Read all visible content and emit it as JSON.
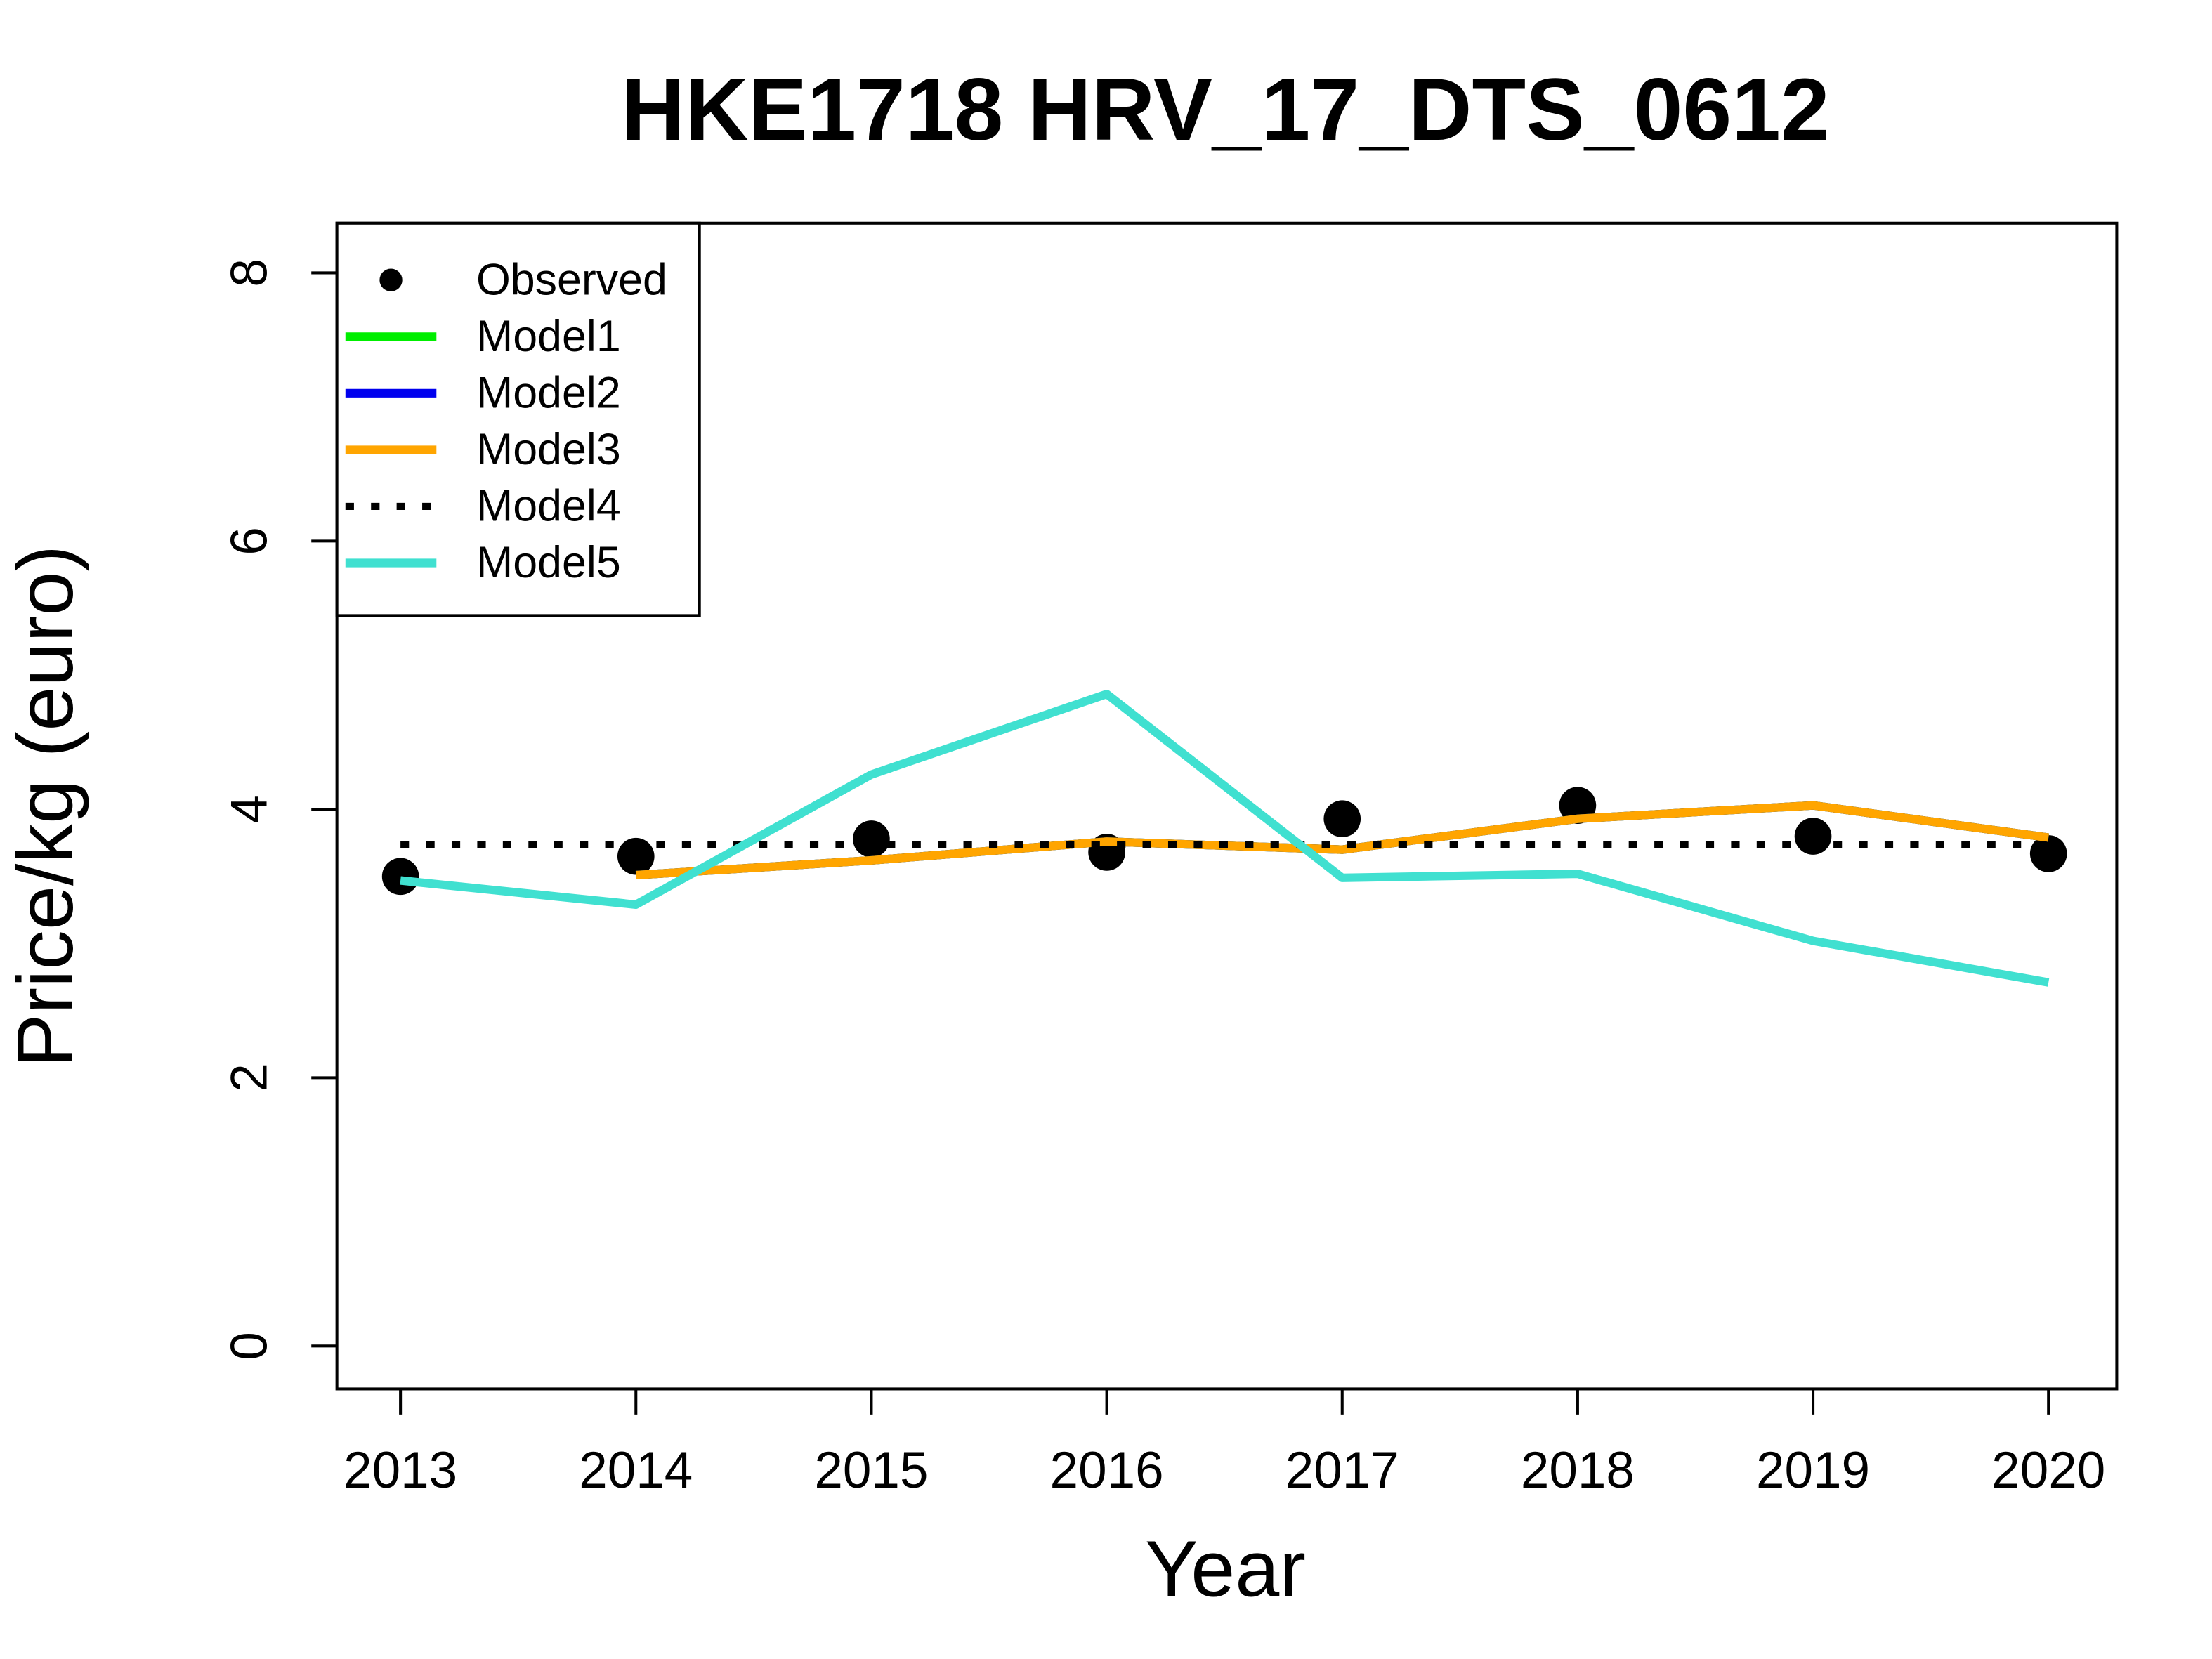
{
  "chart_data": {
    "type": "line",
    "title": "HKE1718 HRV_17_DTS_0612",
    "x_label": "Year",
    "y_label": "Price/kg (euro)",
    "x": [
      2013,
      2014,
      2015,
      2016,
      2017,
      2018,
      2019,
      2020
    ],
    "xlim": [
      2012.73,
      2020.29
    ],
    "xticks": [
      2013,
      2014,
      2015,
      2016,
      2017,
      2018,
      2019,
      2020
    ],
    "ylim": [
      -0.32,
      8.37
    ],
    "yticks": [
      0,
      2,
      4,
      6,
      8
    ],
    "legend": "top-left",
    "series": [
      {
        "name": "Observed",
        "color": "#000000",
        "style": "points",
        "values": [
          3.5,
          3.65,
          3.78,
          3.68,
          3.93,
          4.03,
          3.8,
          3.67
        ]
      },
      {
        "name": "Model1",
        "color": "#00ee00",
        "style": "solid",
        "values": [
          null,
          3.51,
          3.62,
          3.76,
          3.7,
          3.93,
          4.03,
          3.79
        ]
      },
      {
        "name": "Model2",
        "color": "#0000ee",
        "style": "solid",
        "values": [
          null,
          3.51,
          3.62,
          3.76,
          3.7,
          3.93,
          4.03,
          3.79
        ]
      },
      {
        "name": "Model3",
        "color": "#ffa500",
        "style": "solid",
        "values": [
          null,
          3.51,
          3.62,
          3.76,
          3.7,
          3.93,
          4.03,
          3.79
        ]
      },
      {
        "name": "Model4",
        "color": "#000000",
        "style": "dotted",
        "values": [
          3.74,
          3.74,
          3.74,
          3.74,
          3.74,
          3.74,
          3.74,
          3.74
        ]
      },
      {
        "name": "Model5",
        "color": "#40e0d0",
        "style": "solid",
        "values": [
          3.47,
          3.29,
          4.26,
          4.86,
          3.49,
          3.52,
          3.02,
          2.71
        ]
      }
    ]
  }
}
